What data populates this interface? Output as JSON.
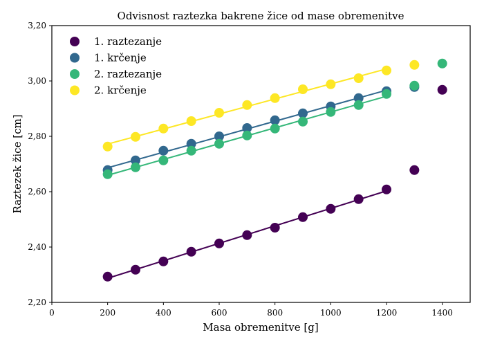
{
  "chart_data": {
    "type": "scatter",
    "title": "Odvisnost raztezka bakrene žice od mase obremenitve",
    "xlabel": "Masa obremenitve [g]",
    "ylabel": "Raztezek žice [cm]",
    "xlim": [
      0,
      1500
    ],
    "ylim": [
      2.2,
      3.2
    ],
    "xticks": [
      0,
      200,
      400,
      600,
      800,
      1000,
      1200,
      1400
    ],
    "xtick_labels": [
      "0",
      "200",
      "400",
      "600",
      "800",
      "1000",
      "1200",
      "1400"
    ],
    "yticks": [
      2.2,
      2.4,
      2.6,
      2.8,
      3.0,
      3.2
    ],
    "ytick_labels": [
      "2,20",
      "2,40",
      "2,60",
      "2,80",
      "3,00",
      "3,20"
    ],
    "grid": false,
    "legend_position": "top-left",
    "fit_range": [
      200,
      1200
    ],
    "series": [
      {
        "name": "1. raztezanje",
        "color": "#440154",
        "x": [
          200,
          300,
          400,
          500,
          600,
          700,
          800,
          900,
          1000,
          1100,
          1200,
          1300,
          1400
        ],
        "y": [
          2.293,
          2.318,
          2.348,
          2.383,
          2.413,
          2.443,
          2.47,
          2.508,
          2.538,
          2.573,
          2.608,
          2.678,
          2.968
        ]
      },
      {
        "name": "1. krčenje",
        "color": "#31688e",
        "x": [
          200,
          300,
          400,
          500,
          600,
          700,
          800,
          900,
          1000,
          1100,
          1200,
          1300
        ],
        "y": [
          2.678,
          2.713,
          2.748,
          2.773,
          2.8,
          2.83,
          2.858,
          2.883,
          2.908,
          2.938,
          2.963,
          2.978
        ]
      },
      {
        "name": "2. raztezanje",
        "color": "#35b779",
        "x": [
          200,
          300,
          400,
          500,
          600,
          700,
          800,
          900,
          1000,
          1100,
          1200,
          1300,
          1400
        ],
        "y": [
          2.663,
          2.688,
          2.713,
          2.748,
          2.773,
          2.803,
          2.828,
          2.853,
          2.888,
          2.913,
          2.953,
          2.983,
          3.063
        ]
      },
      {
        "name": "2. krčenje",
        "color": "#fde725",
        "x": [
          200,
          300,
          400,
          500,
          600,
          700,
          800,
          900,
          1000,
          1100,
          1200,
          1300
        ],
        "y": [
          2.763,
          2.798,
          2.828,
          2.855,
          2.885,
          2.913,
          2.938,
          2.97,
          2.988,
          3.01,
          3.038,
          3.058
        ]
      }
    ]
  }
}
